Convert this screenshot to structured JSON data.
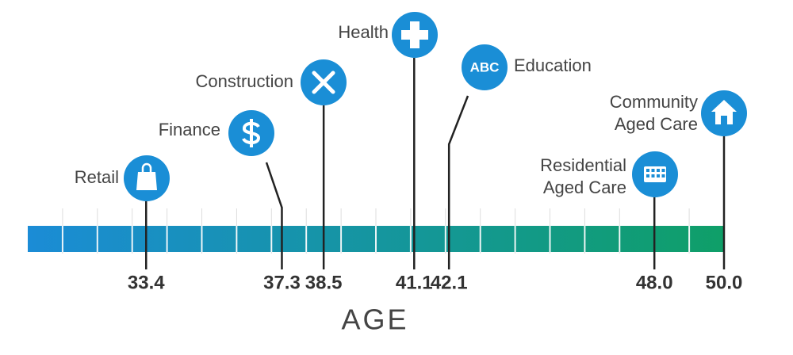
{
  "chart_data": {
    "type": "timeline",
    "x_label": "AGE",
    "categories": [
      [
        "Retail"
      ],
      [
        "Finance"
      ],
      [
        "Construction"
      ],
      [
        "Health"
      ],
      [
        "Education"
      ],
      [
        "Residential",
        "Aged Care"
      ],
      [
        "Community",
        "Aged Care"
      ]
    ],
    "values": [
      33.4,
      37.3,
      38.5,
      41.1,
      42.1,
      48.0,
      50.0
    ],
    "value_labels": [
      "33.4",
      "37.3",
      "38.5",
      "41.1",
      "42.1",
      "48.0",
      "50.0"
    ],
    "badge": "ABC",
    "xlim": [
      30,
      50
    ],
    "colors": [
      "#1b8cd6",
      "#0f9f68"
    ],
    "icon_color": "#1a8ed6"
  }
}
